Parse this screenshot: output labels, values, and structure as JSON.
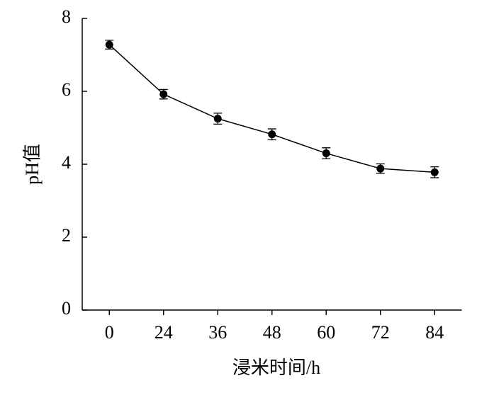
{
  "chart_data": {
    "type": "line",
    "x_label": "浸米时间/h",
    "y_label": "pH值",
    "categories": [
      "0",
      "24",
      "36",
      "48",
      "60",
      "72",
      "84"
    ],
    "series": [
      {
        "values": [
          7.28,
          5.92,
          5.25,
          4.82,
          4.3,
          3.88,
          3.78
        ],
        "errors": [
          0.12,
          0.13,
          0.15,
          0.15,
          0.15,
          0.13,
          0.15
        ],
        "color": "#000000"
      }
    ],
    "ylim": [
      0,
      8
    ],
    "yticks": [
      0,
      2,
      4,
      6,
      8
    ],
    "grid": false
  }
}
